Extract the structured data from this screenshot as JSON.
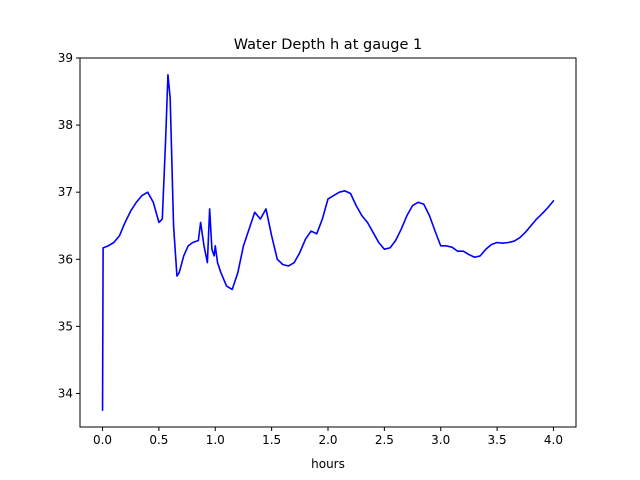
{
  "chart_data": {
    "type": "line",
    "title": "Water Depth h at gauge 1",
    "xlabel": "hours",
    "ylabel": "",
    "xlim": [
      -0.2,
      4.2
    ],
    "ylim": [
      33.5,
      39.0
    ],
    "xticks": [
      0.0,
      0.5,
      1.0,
      1.5,
      2.0,
      2.5,
      3.0,
      3.5,
      4.0
    ],
    "xtick_labels": [
      "0.0",
      "0.5",
      "1.0",
      "1.5",
      "2.0",
      "2.5",
      "3.0",
      "3.5",
      "4.0"
    ],
    "yticks": [
      34,
      35,
      36,
      37,
      38,
      39
    ],
    "ytick_labels": [
      "34",
      "35",
      "36",
      "37",
      "38",
      "39"
    ],
    "grid": false,
    "series": [
      {
        "color": "#0000ff",
        "x": [
          0.0,
          0.005,
          0.05,
          0.1,
          0.15,
          0.2,
          0.25,
          0.3,
          0.35,
          0.4,
          0.45,
          0.5,
          0.53,
          0.56,
          0.58,
          0.6,
          0.63,
          0.66,
          0.68,
          0.72,
          0.76,
          0.8,
          0.85,
          0.87,
          0.9,
          0.93,
          0.95,
          0.97,
          0.99,
          1.0,
          1.02,
          1.05,
          1.1,
          1.15,
          1.2,
          1.25,
          1.3,
          1.35,
          1.4,
          1.45,
          1.5,
          1.55,
          1.6,
          1.65,
          1.7,
          1.75,
          1.8,
          1.85,
          1.9,
          1.95,
          2.0,
          2.05,
          2.1,
          2.15,
          2.2,
          2.25,
          2.3,
          2.35,
          2.4,
          2.45,
          2.5,
          2.55,
          2.6,
          2.65,
          2.7,
          2.75,
          2.8,
          2.85,
          2.9,
          2.95,
          3.0,
          3.05,
          3.1,
          3.15,
          3.2,
          3.25,
          3.3,
          3.35,
          3.4,
          3.45,
          3.5,
          3.55,
          3.6,
          3.65,
          3.7,
          3.75,
          3.8,
          3.85,
          3.9,
          3.95,
          4.0
        ],
        "y": [
          33.75,
          36.17,
          36.2,
          36.25,
          36.35,
          36.55,
          36.72,
          36.85,
          36.95,
          37.0,
          36.85,
          36.55,
          36.6,
          37.8,
          38.75,
          38.4,
          36.5,
          35.75,
          35.8,
          36.05,
          36.2,
          36.25,
          36.28,
          36.55,
          36.2,
          35.95,
          36.75,
          36.15,
          36.05,
          36.2,
          35.95,
          35.8,
          35.6,
          35.55,
          35.8,
          36.2,
          36.45,
          36.7,
          36.6,
          36.75,
          36.35,
          36.0,
          35.92,
          35.9,
          35.95,
          36.1,
          36.3,
          36.42,
          36.38,
          36.6,
          36.9,
          36.95,
          37.0,
          37.02,
          36.98,
          36.8,
          36.65,
          36.55,
          36.4,
          36.25,
          36.15,
          36.17,
          36.28,
          36.45,
          36.65,
          36.8,
          36.85,
          36.82,
          36.65,
          36.42,
          36.2,
          36.2,
          36.18,
          36.12,
          36.12,
          36.07,
          36.03,
          36.05,
          36.15,
          36.22,
          36.25,
          36.24,
          36.25,
          36.27,
          36.32,
          36.4,
          36.5,
          36.6,
          36.68,
          36.77,
          36.87
        ]
      }
    ]
  }
}
